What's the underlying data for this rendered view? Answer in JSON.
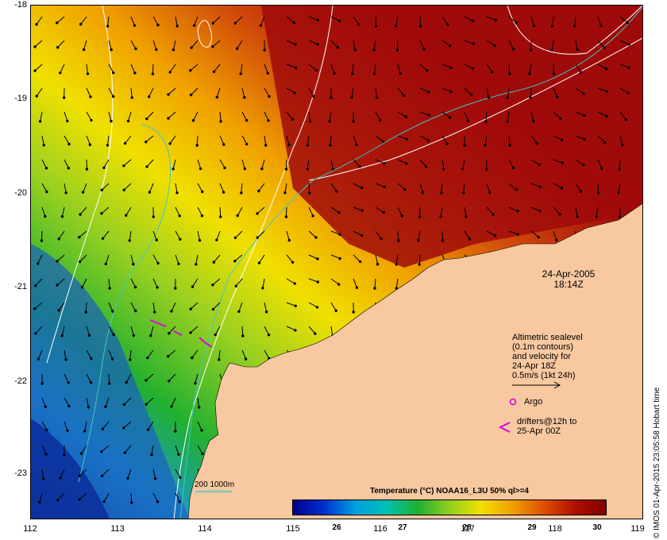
{
  "map": {
    "lat_ticks": [
      "-18",
      "-19",
      "-20",
      "-21",
      "-22",
      "-23"
    ],
    "lon_ticks": [
      "112",
      "113",
      "114",
      "115",
      "116",
      "117",
      "118",
      "119"
    ],
    "colors": {
      "land": "#f8c8a0",
      "sst_warm": "#9a0a0a",
      "sst_cool": "#0a2a9a",
      "contour": "#ffffff",
      "bathymetry": "#40c8c8",
      "argo": "#e000e0",
      "drifter": "#e000e0"
    }
  },
  "timestamp": {
    "date": "24-Apr-2005",
    "time": "18:14Z"
  },
  "legend": {
    "line1": "Altimetric sealevel",
    "line2": "(0.1m contours)",
    "line3": "and velocity for",
    "line4": "24-Apr 18Z",
    "line5": "0.5m/s (1kt 24h)",
    "argo_label": "Argo",
    "drifters_line1": "drifters@12h to",
    "drifters_line2": "25-Apr 00Z",
    "bathy_label": "200  1000m"
  },
  "colorbar": {
    "title": "Temperature (°C) NOAA16_L3U 50% ql>=4",
    "ticks": [
      "26",
      "27",
      "28",
      "29",
      "30"
    ]
  },
  "credit": "© IMOS 01-Apr-2015 23:05:58 Hobart time"
}
